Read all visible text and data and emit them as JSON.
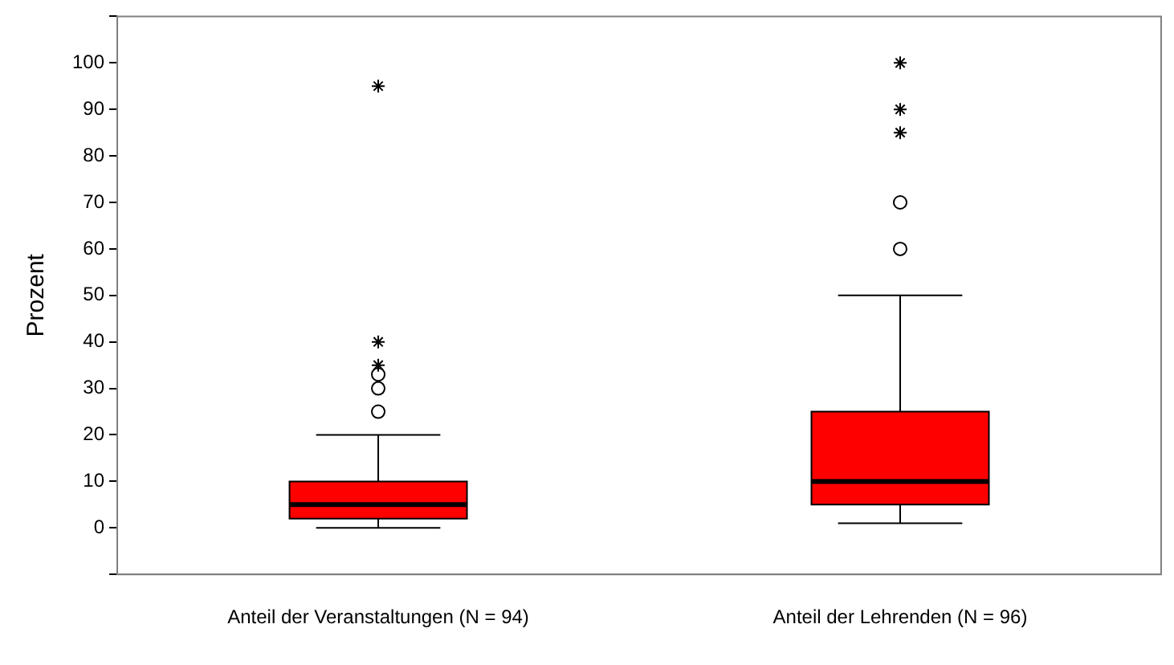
{
  "chart_data": {
    "type": "box",
    "ylabel": "Prozent",
    "categories": [
      "Anteil der Veranstaltungen (N = 94)",
      "Anteil der Lehrenden (N = 96)"
    ],
    "ylim": [
      -10,
      110
    ],
    "yticks": [
      {
        "value": -10,
        "label": null
      },
      0,
      10,
      20,
      30,
      40,
      50,
      60,
      70,
      80,
      90,
      100,
      {
        "value": 110,
        "label": null
      }
    ],
    "grid": false,
    "legend": false,
    "series": [
      {
        "type": "box",
        "color": "#ff0000",
        "boxes": [
          {
            "low": 0,
            "q1": 2,
            "median": 5,
            "q3": 10,
            "high": 20,
            "outliers": [
              25,
              30,
              33
            ]
          },
          {
            "low": 1,
            "q1": 5,
            "median": 10,
            "q3": 25,
            "high": 50,
            "outliers": [
              60,
              70
            ]
          }
        ]
      },
      {
        "type": "scatter",
        "marker": "cross",
        "color": "#000000",
        "x": [
          "Anteil der Veranstaltungen (N = 94)",
          "Anteil der Veranstaltungen (N = 94)",
          "Anteil der Veranstaltungen (N = 94)",
          "Anteil der Lehrenden (N = 96)",
          "Anteil der Lehrenden (N = 96)",
          "Anteil der Lehrenden (N = 96)"
        ],
        "values": [
          35,
          40,
          95,
          85,
          90,
          100
        ]
      }
    ]
  }
}
